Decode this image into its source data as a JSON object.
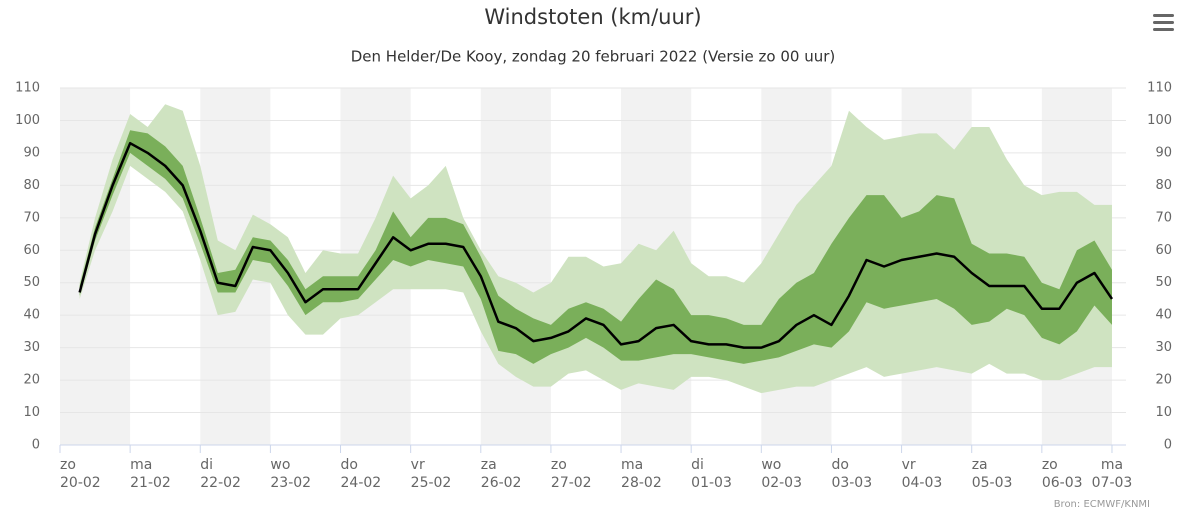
{
  "chart_data": {
    "type": "line",
    "title": "Windstoten (km/uur)",
    "subtitle": "Den Helder/De Kooy, zondag 20 februari 2022 (Versie zo 00 uur)",
    "credit": "Bron: ECMWF/KNMI",
    "x": [
      0.28,
      0.5,
      0.75,
      1.0,
      1.25,
      1.5,
      1.75,
      2.0,
      2.25,
      2.5,
      2.75,
      3.0,
      3.25,
      3.5,
      3.75,
      4.0,
      4.25,
      4.5,
      4.75,
      5.0,
      5.25,
      5.5,
      5.75,
      6.0,
      6.25,
      6.5,
      6.75,
      7.0,
      7.25,
      7.5,
      7.75,
      8.0,
      8.25,
      8.5,
      8.75,
      9.0,
      9.25,
      9.5,
      9.75,
      10.0,
      10.25,
      10.5,
      10.75,
      11.0,
      11.25,
      11.5,
      11.75,
      12.0,
      12.25,
      12.5,
      12.75,
      13.0,
      13.25,
      13.5,
      13.75,
      14.0,
      14.25,
      14.5,
      14.75,
      15.0
    ],
    "xlim": [
      0,
      15.2
    ],
    "xticks": [
      {
        "value": 0,
        "label": "20-02"
      },
      {
        "value": 1,
        "label": "21-02"
      },
      {
        "value": 2,
        "label": "22-02"
      },
      {
        "value": 3,
        "label": "23-02"
      },
      {
        "value": 4,
        "label": "24-02"
      },
      {
        "value": 5,
        "label": "25-02"
      },
      {
        "value": 6,
        "label": "26-02"
      },
      {
        "value": 7,
        "label": "27-02"
      },
      {
        "value": 8,
        "label": "28-02"
      },
      {
        "value": 9,
        "label": "01-03"
      },
      {
        "value": 10,
        "label": "02-03"
      },
      {
        "value": 11,
        "label": "03-03"
      },
      {
        "value": 12,
        "label": "04-03"
      },
      {
        "value": 13,
        "label": "05-03"
      },
      {
        "value": 14,
        "label": "06-03"
      },
      {
        "value": 15,
        "label": "07-03"
      }
    ],
    "x_weekdays": [
      "zo",
      "ma",
      "di",
      "wo",
      "do",
      "vr",
      "za",
      "zo",
      "ma",
      "di",
      "wo",
      "do",
      "vr",
      "za",
      "zo",
      "ma"
    ],
    "ylim": [
      0,
      110
    ],
    "yticks": [
      0,
      10,
      20,
      30,
      40,
      50,
      60,
      70,
      80,
      90,
      100,
      110
    ],
    "grid": true,
    "series": [
      {
        "color": "#cfe3c1",
        "low": [
          45,
          60,
          72,
          86,
          82,
          78,
          72,
          57,
          40,
          41,
          51,
          50,
          40,
          34,
          34,
          39,
          40,
          44,
          48,
          48,
          48,
          48,
          47,
          35,
          25,
          21,
          18,
          18,
          22,
          23,
          20,
          17,
          19,
          18,
          17,
          21,
          21,
          20,
          18,
          16,
          17,
          18,
          18,
          20,
          22,
          24,
          21,
          22,
          23,
          24,
          23,
          22,
          25,
          22,
          22,
          20,
          20,
          22,
          24,
          24
        ],
        "high": [
          50,
          70,
          88,
          102,
          98,
          105,
          103,
          86,
          63,
          60,
          71,
          68,
          64,
          53,
          60,
          59,
          59,
          70,
          83,
          76,
          80,
          86,
          70,
          60,
          52,
          50,
          47,
          50,
          58,
          58,
          55,
          56,
          62,
          60,
          66,
          56,
          52,
          52,
          50,
          56,
          65,
          74,
          80,
          86,
          103,
          98,
          94,
          95,
          96,
          96,
          91,
          98,
          98,
          88,
          80,
          77,
          78,
          78,
          74,
          74
        ]
      },
      {
        "color": "#7aaf5a",
        "low": [
          46,
          63,
          77,
          90,
          86,
          82,
          76,
          62,
          47,
          47,
          57,
          56,
          49,
          40,
          44,
          44,
          45,
          51,
          57,
          55,
          57,
          56,
          55,
          45,
          29,
          28,
          25,
          28,
          30,
          33,
          30,
          26,
          26,
          27,
          28,
          28,
          27,
          26,
          25,
          26,
          27,
          29,
          31,
          30,
          35,
          44,
          42,
          43,
          44,
          45,
          42,
          37,
          38,
          42,
          40,
          33,
          31,
          35,
          43,
          37
        ],
        "high": [
          49,
          67,
          82,
          97,
          96,
          92,
          86,
          70,
          53,
          54,
          64,
          63,
          57,
          48,
          52,
          52,
          52,
          60,
          72,
          64,
          70,
          70,
          68,
          58,
          46,
          42,
          39,
          37,
          42,
          44,
          42,
          38,
          45,
          51,
          48,
          40,
          40,
          39,
          37,
          37,
          45,
          50,
          53,
          62,
          70,
          77,
          77,
          70,
          72,
          77,
          76,
          62,
          59,
          59,
          58,
          50,
          48,
          60,
          63,
          54
        ]
      },
      {
        "color": "#000000",
        "values": [
          47,
          65,
          80,
          93,
          90,
          86,
          80,
          66,
          50,
          49,
          61,
          60,
          53,
          44,
          48,
          48,
          48,
          56,
          64,
          60,
          62,
          62,
          61,
          52,
          38,
          36,
          32,
          33,
          35,
          39,
          37,
          31,
          32,
          36,
          37,
          32,
          31,
          31,
          30,
          30,
          32,
          37,
          40,
          37,
          46,
          57,
          55,
          57,
          58,
          59,
          58,
          53,
          49,
          49,
          49,
          42,
          42,
          50,
          53,
          45
        ]
      }
    ]
  }
}
